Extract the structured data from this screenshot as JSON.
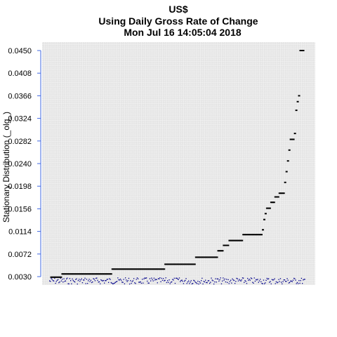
{
  "chart_data": {
    "type": "scatter",
    "title": "US$",
    "subtitle": "Using Daily Gross Rate of Change",
    "timestamp": "Mon Jul 16 14:05:04 2018",
    "xlabel": "",
    "ylabel": "Stationary Distribution (_olg_)",
    "ylim": [
      0.003,
      0.045
    ],
    "y_ticks": [
      "0.0450",
      "0.0408",
      "0.0366",
      "0.0324",
      "0.0282",
      "0.0240",
      "0.0198",
      "0.0156",
      "0.0114",
      "0.0072",
      "0.0030"
    ],
    "grid": true,
    "n_points": 180,
    "series": [
      {
        "values": [
          0.0029,
          0.0029,
          0.0029,
          0.0029,
          0.0029,
          0.0029,
          0.0029,
          0.0029,
          0.0035,
          0.0035,
          0.0035,
          0.0035,
          0.0035,
          0.0035,
          0.0035,
          0.0035,
          0.0035,
          0.0035,
          0.0035,
          0.0035,
          0.0035,
          0.0035,
          0.0035,
          0.0035,
          0.0035,
          0.0035,
          0.0035,
          0.0035,
          0.0035,
          0.0035,
          0.0035,
          0.0035,
          0.0035,
          0.0035,
          0.0035,
          0.0035,
          0.0035,
          0.0035,
          0.0035,
          0.0035,
          0.0035,
          0.0035,
          0.0035,
          0.0035,
          0.0044,
          0.0044,
          0.0044,
          0.0044,
          0.0044,
          0.0044,
          0.0044,
          0.0044,
          0.0044,
          0.0044,
          0.0044,
          0.0044,
          0.0044,
          0.0044,
          0.0044,
          0.0044,
          0.0044,
          0.0044,
          0.0044,
          0.0044,
          0.0044,
          0.0044,
          0.0044,
          0.0044,
          0.0044,
          0.0044,
          0.0044,
          0.0044,
          0.0044,
          0.0044,
          0.0044,
          0.0044,
          0.0044,
          0.0044,
          0.0044,
          0.0044,
          0.0044,
          0.0044,
          0.0053,
          0.0053,
          0.0053,
          0.0053,
          0.0053,
          0.0053,
          0.0053,
          0.0053,
          0.0053,
          0.0053,
          0.0053,
          0.0053,
          0.0053,
          0.0053,
          0.0053,
          0.0053,
          0.0053,
          0.0053,
          0.0053,
          0.0053,
          0.0053,
          0.0053,
          0.0066,
          0.0066,
          0.0066,
          0.0066,
          0.0066,
          0.0066,
          0.0066,
          0.0066,
          0.0066,
          0.0066,
          0.0066,
          0.0066,
          0.0066,
          0.0066,
          0.0066,
          0.0066,
          0.0078,
          0.0078,
          0.0078,
          0.0078,
          0.0088,
          0.0088,
          0.0088,
          0.0088,
          0.0097,
          0.0097,
          0.0097,
          0.0097,
          0.0097,
          0.0097,
          0.0097,
          0.0097,
          0.0097,
          0.0097,
          0.0108,
          0.0108,
          0.0108,
          0.0108,
          0.0108,
          0.0108,
          0.0108,
          0.0108,
          0.0108,
          0.0108,
          0.0108,
          0.0108,
          0.0108,
          0.0108,
          0.0117,
          0.0136,
          0.0147,
          0.0157,
          0.0157,
          0.0157,
          0.0168,
          0.0168,
          0.0168,
          0.0178,
          0.0178,
          0.0178,
          0.0185,
          0.0185,
          0.0185,
          0.0185,
          0.0205,
          0.0225,
          0.0245,
          0.0265,
          0.0285,
          0.0285,
          0.0285,
          0.0296,
          0.0339,
          0.0355,
          0.0366,
          0.045,
          0.045,
          0.045
        ]
      }
    ]
  },
  "colors": {
    "points": "#000000",
    "baseline_band": "#00008b",
    "grid": "#c8c8c8",
    "panel_background": "#f0f0f0",
    "axis_line": "#4169e1"
  }
}
